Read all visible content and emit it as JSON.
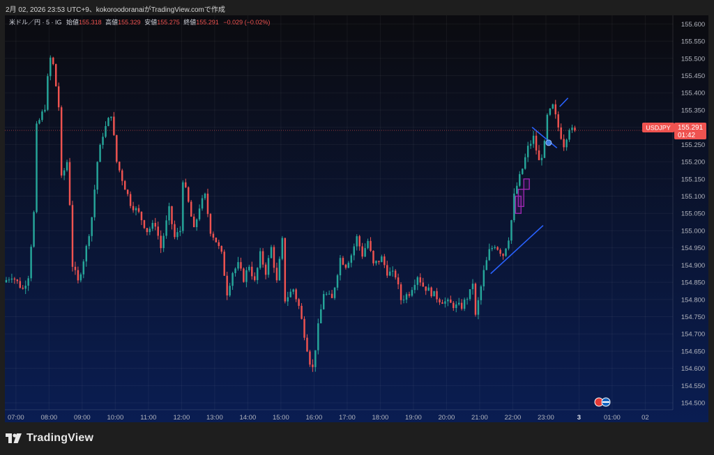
{
  "header": {
    "caption": "2月 02, 2026 23:53 UTC+9、kokoroodoranaiがTradingView.comで作成"
  },
  "legend": {
    "symbol": "米ドル／円 · 5 · IG",
    "open_label": "始値",
    "open_value": "155.318",
    "high_label": "高値",
    "high_value": "155.329",
    "low_label": "安値",
    "low_value": "155.275",
    "close_label": "終値",
    "close_value": "155.291",
    "change": "−0.029 (−0.02%)"
  },
  "price_tag": {
    "symbol": "USDJPY",
    "price": "155.291",
    "countdown": "01:42"
  },
  "footer": {
    "brand": "TradingView"
  },
  "colors": {
    "up": "#26a69a",
    "down": "#ef5350",
    "trendline": "#2962ff",
    "box": "#9c27b0",
    "background_top": "#0b0b0f",
    "background_bottom": "#0a1d52",
    "axis_text": "#b2b5be"
  },
  "chart_data": {
    "type": "candlestick",
    "xlabel": "",
    "ylabel": "",
    "x_ticks": [
      "07:00",
      "08:00",
      "09:00",
      "10:00",
      "11:00",
      "12:00",
      "13:00",
      "14:00",
      "15:00",
      "16:00",
      "17:00",
      "18:00",
      "19:00",
      "20:00",
      "21:00",
      "22:00",
      "23:00",
      "3",
      "01:00",
      "02"
    ],
    "y_ticks": [
      "155.600",
      "155.550",
      "155.500",
      "155.450",
      "155.400",
      "155.350",
      "155.300",
      "155.250",
      "155.200",
      "155.150",
      "155.100",
      "155.050",
      "155.000",
      "154.950",
      "154.900",
      "154.850",
      "154.800",
      "154.750",
      "154.700",
      "154.650",
      "154.600",
      "154.550",
      "154.500"
    ],
    "ylim": [
      154.48,
      155.625
    ],
    "x_range": [
      "06:40",
      "02:50"
    ],
    "grid": true,
    "last_price": 155.291,
    "anchors": [
      [
        "06:40",
        154.85
      ],
      [
        "06:55",
        154.87
      ],
      [
        "07:15",
        154.83
      ],
      [
        "07:25",
        154.87
      ],
      [
        "07:35",
        155.05
      ],
      [
        "07:40",
        155.3
      ],
      [
        "07:55",
        155.36
      ],
      [
        "08:00",
        155.44
      ],
      [
        "08:05",
        155.5
      ],
      [
        "08:10",
        155.48
      ],
      [
        "08:20",
        155.36
      ],
      [
        "08:25",
        155.15
      ],
      [
        "08:35",
        155.2
      ],
      [
        "08:40",
        155.08
      ],
      [
        "08:45",
        154.9
      ],
      [
        "08:55",
        154.85
      ],
      [
        "09:10",
        154.95
      ],
      [
        "09:20",
        155.04
      ],
      [
        "09:30",
        155.2
      ],
      [
        "09:40",
        155.28
      ],
      [
        "09:55",
        155.34
      ],
      [
        "10:05",
        155.2
      ],
      [
        "10:15",
        155.15
      ],
      [
        "10:30",
        155.08
      ],
      [
        "10:45",
        155.05
      ],
      [
        "11:00",
        155.0
      ],
      [
        "11:15",
        155.02
      ],
      [
        "11:25",
        154.95
      ],
      [
        "11:40",
        155.06
      ],
      [
        "11:50",
        154.98
      ],
      [
        "12:00",
        155.0
      ],
      [
        "12:05",
        155.15
      ],
      [
        "12:15",
        155.08
      ],
      [
        "12:25",
        155.0
      ],
      [
        "12:35",
        155.07
      ],
      [
        "12:45",
        155.1
      ],
      [
        "12:55",
        155.0
      ],
      [
        "13:05",
        154.97
      ],
      [
        "13:15",
        154.93
      ],
      [
        "13:25",
        154.82
      ],
      [
        "13:35",
        154.88
      ],
      [
        "13:45",
        154.9
      ],
      [
        "13:55",
        154.86
      ],
      [
        "14:05",
        154.9
      ],
      [
        "14:15",
        154.85
      ],
      [
        "14:25",
        154.93
      ],
      [
        "14:35",
        154.88
      ],
      [
        "14:45",
        154.95
      ],
      [
        "14:55",
        154.85
      ],
      [
        "15:05",
        154.97
      ],
      [
        "15:10",
        154.8
      ],
      [
        "15:25",
        154.83
      ],
      [
        "15:35",
        154.78
      ],
      [
        "15:45",
        154.7
      ],
      [
        "15:55",
        154.62
      ],
      [
        "16:00",
        154.6
      ],
      [
        "16:10",
        154.72
      ],
      [
        "16:20",
        154.82
      ],
      [
        "16:35",
        154.8
      ],
      [
        "16:50",
        154.92
      ],
      [
        "17:00",
        154.9
      ],
      [
        "17:10",
        154.93
      ],
      [
        "17:20",
        154.98
      ],
      [
        "17:30",
        154.93
      ],
      [
        "17:40",
        154.97
      ],
      [
        "17:50",
        154.9
      ],
      [
        "18:05",
        154.92
      ],
      [
        "18:15",
        154.88
      ],
      [
        "18:30",
        154.87
      ],
      [
        "18:40",
        154.8
      ],
      [
        "18:55",
        154.82
      ],
      [
        "19:10",
        154.87
      ],
      [
        "19:20",
        154.84
      ],
      [
        "19:35",
        154.82
      ],
      [
        "19:50",
        154.8
      ],
      [
        "20:05",
        154.79
      ],
      [
        "20:20",
        154.78
      ],
      [
        "20:30",
        154.78
      ],
      [
        "20:45",
        154.82
      ],
      [
        "20:50",
        154.85
      ],
      [
        "20:55",
        154.75
      ],
      [
        "21:10",
        154.88
      ],
      [
        "21:20",
        154.94
      ],
      [
        "21:30",
        154.96
      ],
      [
        "21:45",
        154.93
      ],
      [
        "21:55",
        154.98
      ],
      [
        "22:00",
        155.03
      ],
      [
        "22:05",
        155.1
      ],
      [
        "22:10",
        155.13
      ],
      [
        "22:20",
        155.18
      ],
      [
        "22:30",
        155.24
      ],
      [
        "22:40",
        155.27
      ],
      [
        "22:50",
        155.2
      ],
      [
        "22:55",
        155.22
      ],
      [
        "23:00",
        155.25
      ],
      [
        "23:05",
        155.33
      ],
      [
        "23:15",
        155.36
      ],
      [
        "23:25",
        155.3
      ],
      [
        "23:35",
        155.25
      ],
      [
        "23:45",
        155.3
      ],
      [
        "23:50",
        155.29
      ]
    ],
    "annotations": [
      {
        "type": "trendline",
        "from": [
          "21:20",
          154.875
        ],
        "to": [
          "22:55",
          155.015
        ]
      },
      {
        "type": "trendline",
        "from": [
          "22:35",
          155.3
        ],
        "to": [
          "23:20",
          155.24
        ]
      },
      {
        "type": "trendline",
        "from": [
          "23:25",
          155.36
        ],
        "to": [
          "23:40",
          155.385
        ]
      },
      {
        "type": "rectangle",
        "t0": "22:05",
        "t1": "22:15",
        "p0": 155.05,
        "p1": 155.1
      },
      {
        "type": "rectangle",
        "t0": "22:10",
        "t1": "22:20",
        "p0": 155.07,
        "p1": 155.12
      },
      {
        "type": "rectangle",
        "t0": "22:20",
        "t1": "22:30",
        "p0": 155.12,
        "p1": 155.15
      },
      {
        "type": "marker",
        "t": "23:05",
        "p": 155.255
      }
    ]
  }
}
